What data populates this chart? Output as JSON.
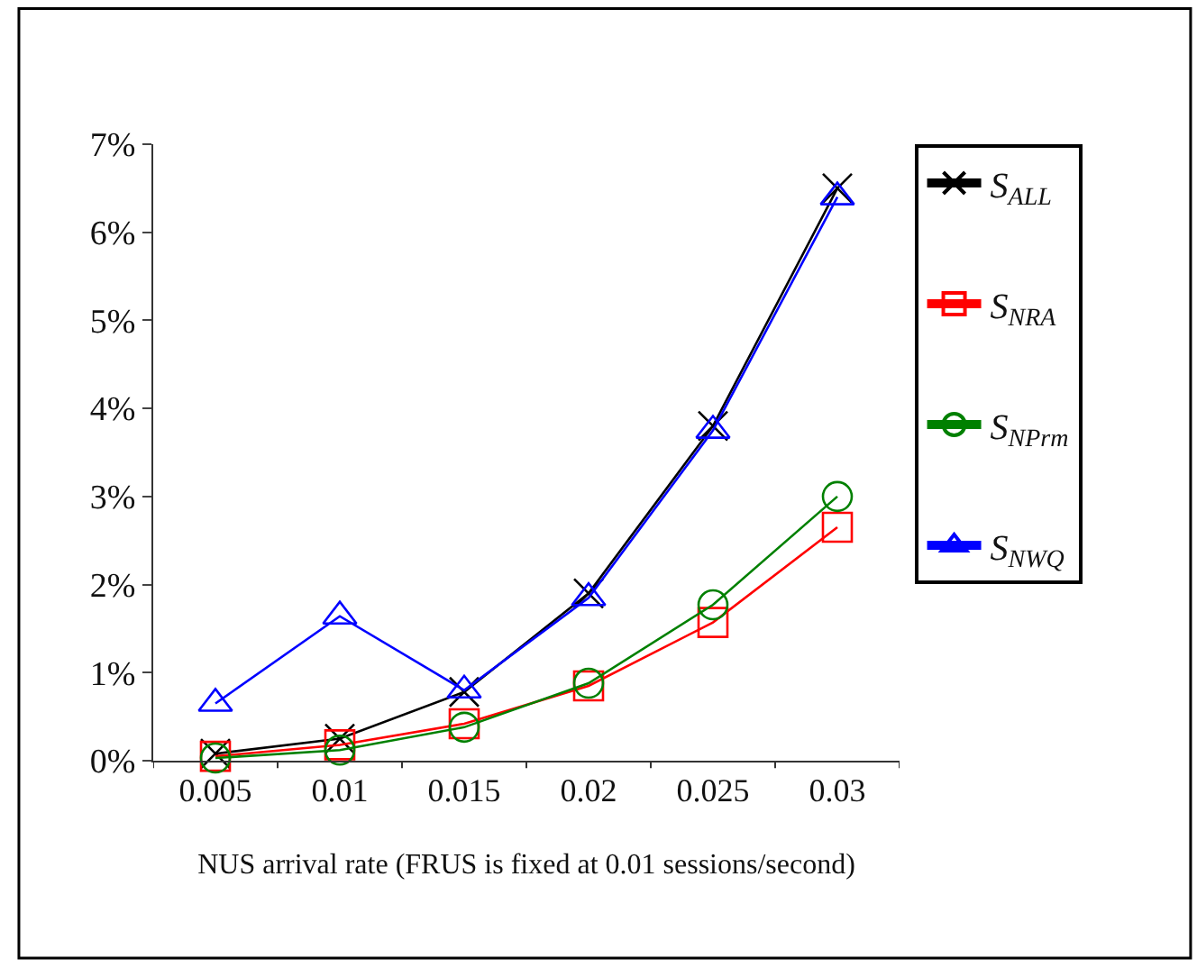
{
  "chart_data": {
    "type": "line",
    "xlabel": "NUS arrival rate (FRUS is fixed at 0.01 sessions/second)",
    "categories": [
      "0.005",
      "0.01",
      "0.015",
      "0.02",
      "0.025",
      "0.03"
    ],
    "series": [
      {
        "name": "S$_{ALL}$",
        "color": "#000000",
        "marker": "cross",
        "values": [
          0.08,
          0.25,
          0.78,
          1.9,
          3.8,
          6.5
        ]
      },
      {
        "name": "S$_{NRA}$",
        "color": "#ff0000",
        "marker": "square",
        "values": [
          0.05,
          0.18,
          0.42,
          0.85,
          1.57,
          2.65
        ]
      },
      {
        "name": "S$_{NPrm}$",
        "color": "#008000",
        "marker": "circle",
        "values": [
          0.03,
          0.12,
          0.38,
          0.88,
          1.77,
          3.0
        ]
      },
      {
        "name": "S$_{NWQ}$",
        "color": "#0000ff",
        "marker": "triangle",
        "values": [
          0.65,
          1.64,
          0.8,
          1.85,
          3.75,
          6.4
        ]
      }
    ],
    "ylim": [
      0,
      7
    ],
    "yticks": [
      {
        "value": 0,
        "label": "0%"
      },
      {
        "value": 1,
        "label": "1%"
      },
      {
        "value": 2,
        "label": "2%"
      },
      {
        "value": 3,
        "label": "3%"
      },
      {
        "value": 4,
        "label": "4%"
      },
      {
        "value": 5,
        "label": "5%"
      },
      {
        "value": 6,
        "label": "6%"
      },
      {
        "value": 7,
        "label": "7%"
      }
    ],
    "legend": "right",
    "line_style": "solid"
  }
}
